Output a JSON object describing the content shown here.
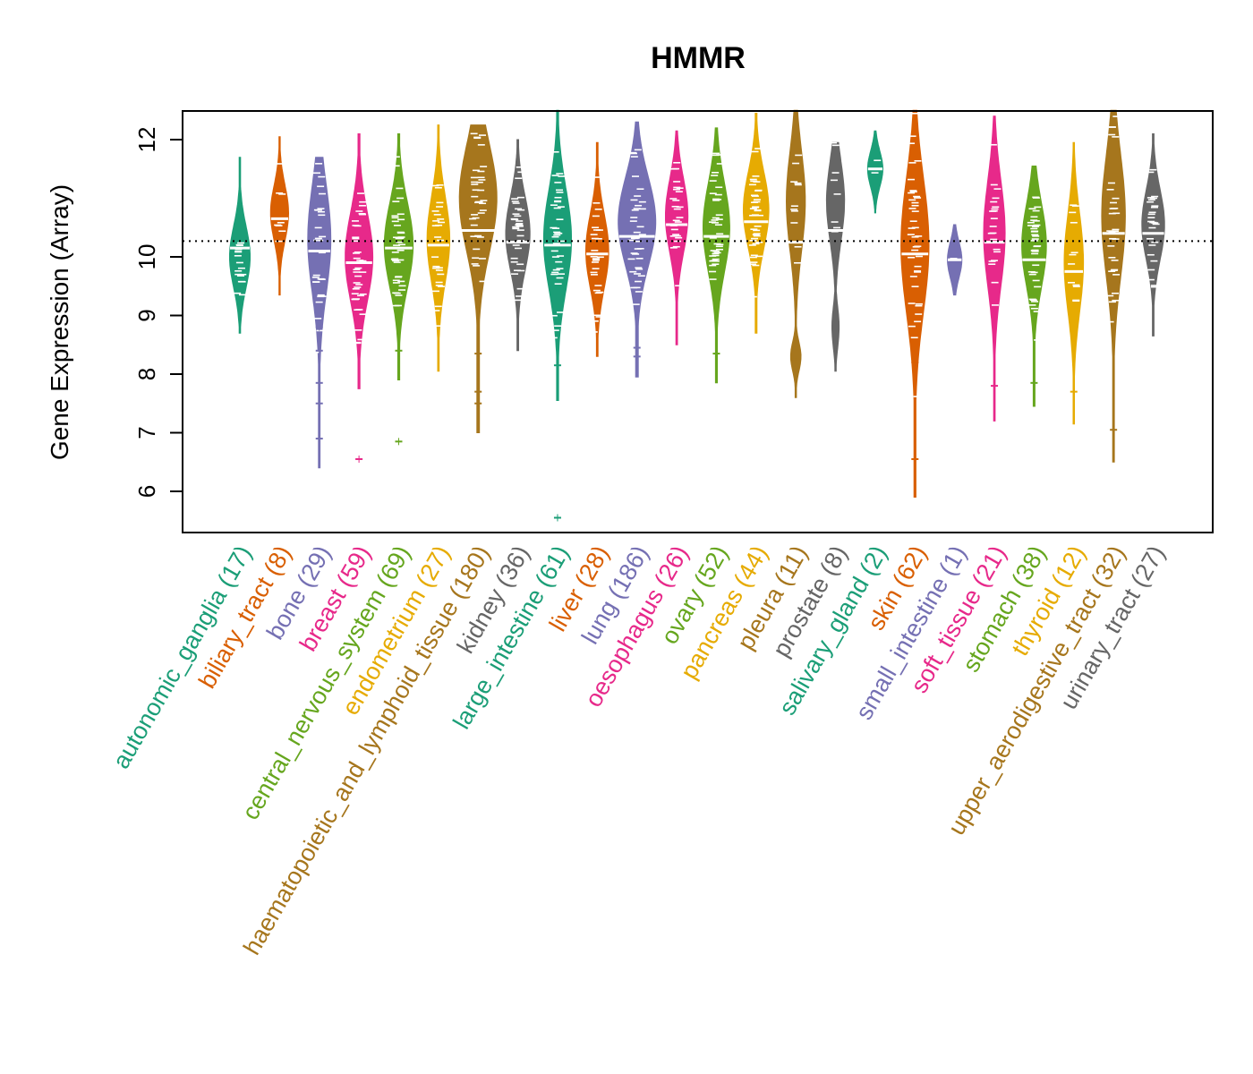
{
  "chart_data": {
    "type": "violin",
    "title": "HMMR",
    "xlabel": "",
    "ylabel": "Gene Expression (Array)",
    "ylim": [
      5.3,
      12.5
    ],
    "yticks": [
      6,
      7,
      8,
      9,
      10,
      12
    ],
    "reference_line": 10.27,
    "reference_line_style": "dotted",
    "categories": [
      {
        "name": "autonomic_ganglia",
        "n": 17,
        "label": "autonomic_ganglia (17)",
        "color": "#1B9E77",
        "median": 10.15,
        "min": 8.7,
        "max": 11.7,
        "peak": 10.0,
        "outliers": []
      },
      {
        "name": "biliary_tract",
        "n": 8,
        "label": "biliary_tract (8)",
        "color": "#D95F02",
        "median": 10.65,
        "min": 9.35,
        "max": 12.05,
        "peak": 10.75,
        "outliers": []
      },
      {
        "name": "bone",
        "n": 29,
        "label": "bone (29)",
        "color": "#7570B3",
        "median": 10.1,
        "min": 6.4,
        "max": 11.7,
        "peak": 10.3,
        "outliers": [
          8.8,
          8.4,
          7.85,
          7.5,
          6.9
        ]
      },
      {
        "name": "breast",
        "n": 59,
        "label": "breast (59)",
        "color": "#E7298A",
        "median": 9.9,
        "min": 7.75,
        "max": 12.1,
        "peak": 10.0,
        "outliers": [
          6.55
        ]
      },
      {
        "name": "central_nervous_system",
        "n": 69,
        "label": "central_nervous_system (69)",
        "color": "#66A61E",
        "median": 10.15,
        "min": 7.9,
        "max": 12.1,
        "peak": 10.2,
        "outliers": [
          8.4,
          6.85
        ]
      },
      {
        "name": "endometrium",
        "n": 27,
        "label": "endometrium (27)",
        "color": "#E6AB02",
        "median": 10.2,
        "min": 8.05,
        "max": 12.25,
        "peak": 10.3,
        "outliers": []
      },
      {
        "name": "haematopoietic_and_lymphoid_tissue",
        "n": 180,
        "label": "haematopoietic_and_lymphoid_tissue (180)",
        "color": "#A6761D",
        "median": 10.45,
        "min": 7.0,
        "max": 12.25,
        "peak": 11.0,
        "outliers": [
          8.35,
          7.7,
          7.5
        ]
      },
      {
        "name": "kidney",
        "n": 36,
        "label": "kidney (36)",
        "color": "#666666",
        "median": 10.25,
        "min": 8.4,
        "max": 12.0,
        "peak": 10.4,
        "outliers": []
      },
      {
        "name": "large_intestine",
        "n": 61,
        "label": "large_intestine (61)",
        "color": "#1B9E77",
        "median": 10.2,
        "min": 7.55,
        "max": 12.5,
        "peak": 10.3,
        "outliers": [
          8.15,
          5.55
        ]
      },
      {
        "name": "liver",
        "n": 28,
        "label": "liver (28)",
        "color": "#D95F02",
        "median": 10.05,
        "min": 8.3,
        "max": 11.95,
        "peak": 10.1,
        "outliers": []
      },
      {
        "name": "lung",
        "n": 186,
        "label": "lung (186)",
        "color": "#7570B3",
        "median": 10.35,
        "min": 7.95,
        "max": 12.3,
        "peak": 10.6,
        "outliers": [
          8.45,
          8.3
        ]
      },
      {
        "name": "oesophagus",
        "n": 26,
        "label": "oesophagus (26)",
        "color": "#E7298A",
        "median": 10.55,
        "min": 8.5,
        "max": 12.15,
        "peak": 10.7,
        "outliers": []
      },
      {
        "name": "ovary",
        "n": 52,
        "label": "ovary (52)",
        "color": "#66A61E",
        "median": 10.35,
        "min": 7.85,
        "max": 12.2,
        "peak": 10.5,
        "outliers": [
          8.35
        ]
      },
      {
        "name": "pancreas",
        "n": 44,
        "label": "pancreas (44)",
        "color": "#E6AB02",
        "median": 10.6,
        "min": 8.7,
        "max": 12.45,
        "peak": 10.8,
        "outliers": []
      },
      {
        "name": "pleura",
        "n": 11,
        "label": "pleura (11)",
        "color": "#A6761D",
        "median": 10.25,
        "min": 7.6,
        "max": 12.5,
        "peak": 10.95,
        "outliers": [
          8.25
        ]
      },
      {
        "name": "prostate",
        "n": 8,
        "label": "prostate (8)",
        "color": "#666666",
        "median": 10.45,
        "min": 8.05,
        "max": 11.95,
        "peak": 10.95,
        "outliers": []
      },
      {
        "name": "salivary_gland",
        "n": 2,
        "label": "salivary_gland (2)",
        "color": "#1B9E77",
        "median": 11.5,
        "min": 10.75,
        "max": 12.15,
        "peak": 11.5,
        "outliers": []
      },
      {
        "name": "skin",
        "n": 62,
        "label": "skin (62)",
        "color": "#D95F02",
        "median": 10.05,
        "min": 5.9,
        "max": 12.5,
        "peak": 10.2,
        "outliers": [
          8.2,
          6.55
        ]
      },
      {
        "name": "small_intestine",
        "n": 1,
        "label": "small_intestine (1)",
        "color": "#7570B3",
        "median": 9.95,
        "min": 9.35,
        "max": 10.55,
        "peak": 9.95,
        "outliers": []
      },
      {
        "name": "soft_tissue",
        "n": 21,
        "label": "soft_tissue (21)",
        "color": "#E7298A",
        "median": 10.25,
        "min": 7.2,
        "max": 12.4,
        "peak": 10.4,
        "outliers": [
          7.8
        ]
      },
      {
        "name": "stomach",
        "n": 38,
        "label": "stomach (38)",
        "color": "#66A61E",
        "median": 9.95,
        "min": 7.45,
        "max": 11.55,
        "peak": 10.2,
        "outliers": [
          7.85
        ]
      },
      {
        "name": "thyroid",
        "n": 12,
        "label": "thyroid (12)",
        "color": "#E6AB02",
        "median": 9.75,
        "min": 7.15,
        "max": 11.95,
        "peak": 9.9,
        "outliers": [
          7.7
        ]
      },
      {
        "name": "upper_aerodigestive_tract",
        "n": 32,
        "label": "upper_aerodigestive_tract (32)",
        "color": "#A6761D",
        "median": 10.4,
        "min": 6.5,
        "max": 12.5,
        "peak": 10.7,
        "outliers": [
          7.05
        ]
      },
      {
        "name": "urinary_tract",
        "n": 27,
        "label": "urinary_tract (27)",
        "color": "#666666",
        "median": 10.4,
        "min": 8.65,
        "max": 12.1,
        "peak": 10.55,
        "outliers": []
      }
    ]
  }
}
